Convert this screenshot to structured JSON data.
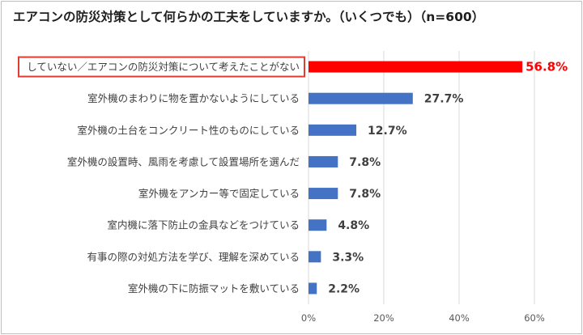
{
  "title": "エアコンの防災対策として何らかの工夫をしていますか。（いくつでも）（n=600）",
  "colors": {
    "bar": "#4472c4",
    "highlight_bar": "#ff0000",
    "highlight_border": "#e03c31",
    "grid": "#d9d9d9"
  },
  "chart_data": {
    "type": "bar",
    "orientation": "horizontal",
    "title": "エアコンの防災対策として何らかの工夫をしていますか。（いくつでも）（n=600）",
    "categories": [
      "していない／エアコンの防災対策について考えたことがない",
      "室外機のまわりに物を置かないようにしている",
      "室外機の土台をコンクリート性のものにしている",
      "室外機の設置時、風雨を考慮して設置場所を選んだ",
      "室外機をアンカー等で固定している",
      "室内機に落下防止の金具などをつけている",
      "有事の際の対処方法を学び、理解を深めている",
      "室外機の下に防振マットを敷いている"
    ],
    "values": [
      56.8,
      27.7,
      12.7,
      7.8,
      7.8,
      4.8,
      3.3,
      2.2
    ],
    "value_labels": [
      "56.8%",
      "27.7%",
      "12.7%",
      "7.8%",
      "7.8%",
      "4.8%",
      "3.3%",
      "2.2%"
    ],
    "highlight_index": 0,
    "xlim": [
      0,
      60
    ],
    "xticks": [
      0,
      20,
      40,
      60
    ],
    "xtick_labels": [
      "0%",
      "20%",
      "40%",
      "60%"
    ],
    "grid": true,
    "xlabel": "",
    "ylabel": ""
  }
}
